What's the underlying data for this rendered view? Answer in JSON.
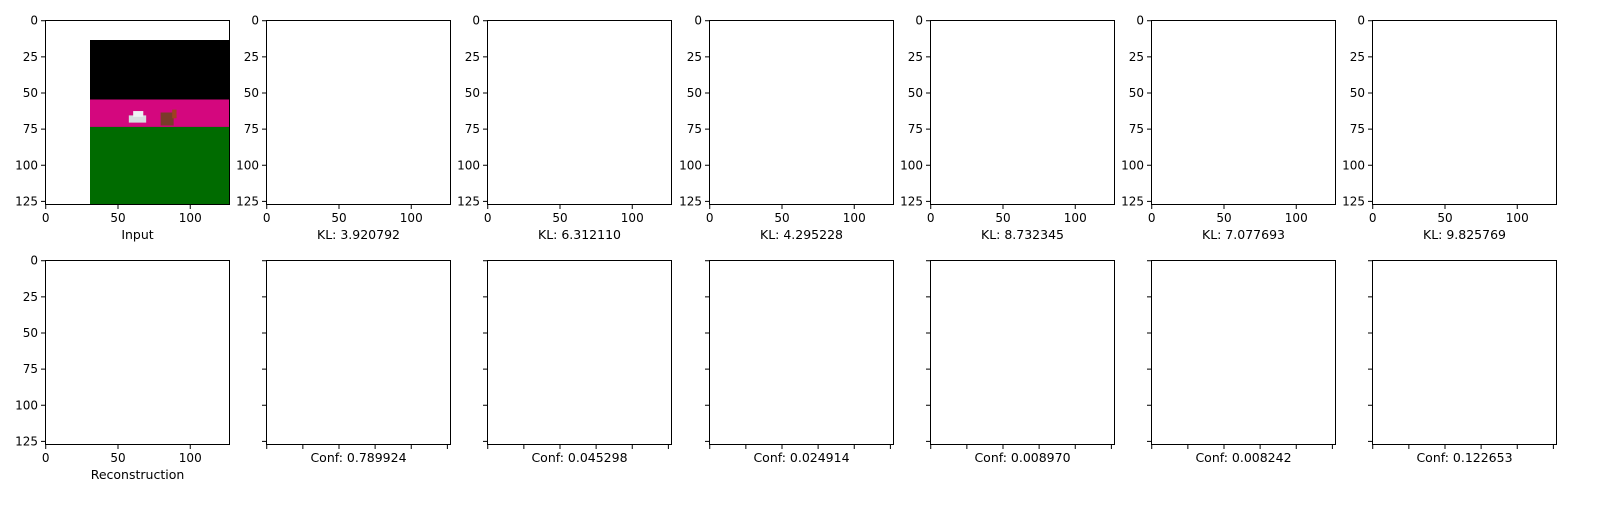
{
  "chart_data": {
    "type": "image_grid",
    "rows": 2,
    "cols": 7,
    "image_size": 128,
    "ticks": [
      0,
      25,
      50,
      75,
      100,
      125
    ],
    "x_ticks": [
      0,
      50,
      100
    ],
    "top_row": [
      {
        "label": "Input"
      },
      {
        "label": "KL: 3.920792"
      },
      {
        "label": "KL: 6.312110"
      },
      {
        "label": "KL: 4.295228"
      },
      {
        "label": "KL: 8.732345"
      },
      {
        "label": "KL: 7.077693"
      },
      {
        "label": "KL: 9.825769"
      }
    ],
    "bottom_row": [
      {
        "label": "Reconstruction"
      },
      {
        "label": "Conf: 0.789924"
      },
      {
        "label": "Conf: 0.045298"
      },
      {
        "label": "Conf: 0.024914"
      },
      {
        "label": "Conf: 0.008970"
      },
      {
        "label": "Conf: 0.008242"
      },
      {
        "label": "Conf: 0.122653"
      }
    ],
    "colors": {
      "sky": "#000000",
      "magenta": "#d4077e",
      "ground": "#006b00",
      "pole": "#bfa800"
    }
  }
}
